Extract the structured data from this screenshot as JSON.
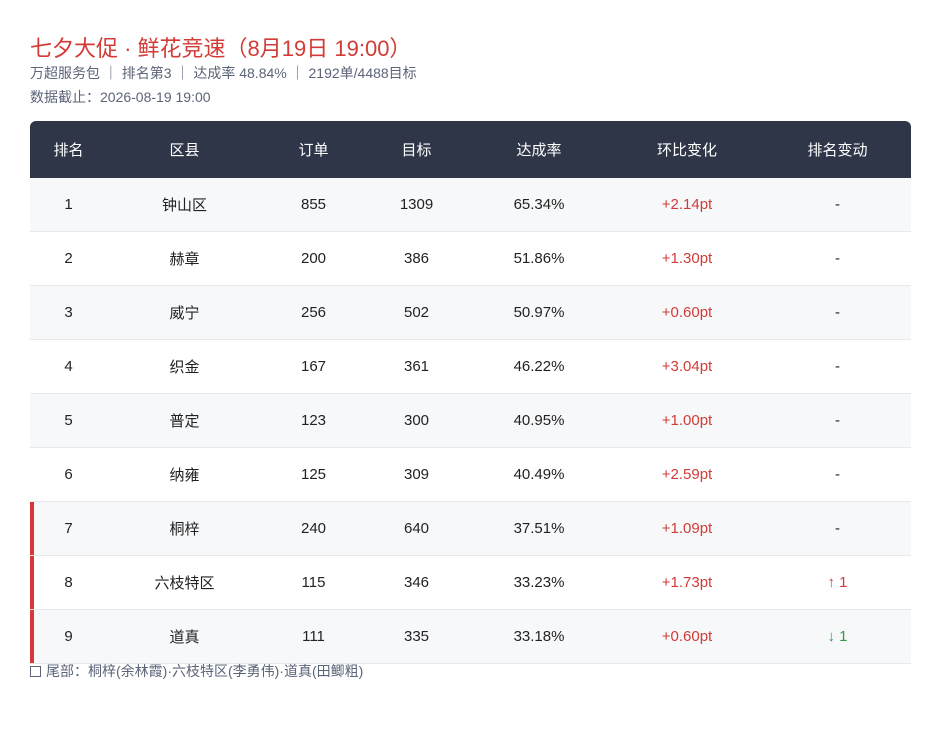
{
  "header": {
    "title": "七夕大促 · 鲜花竞速（8月19日 19:00）",
    "subtitle": "万超服务包 ｜ 排名第3 ｜ 达成率 48.84% ｜ 2192单/4488目标",
    "updated": "数据截止：2026-08-19 19:00"
  },
  "table": {
    "headers": [
      "排名",
      "区县",
      "订单",
      "目标",
      "达成率",
      "环比变化",
      "排名变动"
    ],
    "rows": [
      [
        "1",
        "钟山区",
        "855",
        "1309",
        "65.34%",
        "+2.14pt",
        "-"
      ],
      [
        "2",
        "赫章",
        "200",
        "386",
        "51.86%",
        "+1.30pt",
        "-"
      ],
      [
        "3",
        "威宁",
        "256",
        "502",
        "50.97%",
        "+0.60pt",
        "-"
      ],
      [
        "4",
        "织金",
        "167",
        "361",
        "46.22%",
        "+3.04pt",
        "-"
      ],
      [
        "5",
        "普定",
        "123",
        "300",
        "40.95%",
        "+1.00pt",
        "-"
      ],
      [
        "6",
        "纳雍",
        "125",
        "309",
        "40.49%",
        "+2.59pt",
        "-"
      ],
      [
        "7",
        "桐梓",
        "240",
        "640",
        "37.51%",
        "+1.09pt",
        "-"
      ],
      [
        "8",
        "六枝特区",
        "115",
        "346",
        "33.23%",
        "+1.73pt",
        "↑ 1"
      ],
      [
        "9",
        "道真",
        "111",
        "335",
        "33.18%",
        "+0.60pt",
        "↓ 1"
      ]
    ]
  },
  "footer": {
    "note": "尾部：桐梓(余林霞)·六枝特区(李勇伟)·道真(田鲫粗)"
  }
}
